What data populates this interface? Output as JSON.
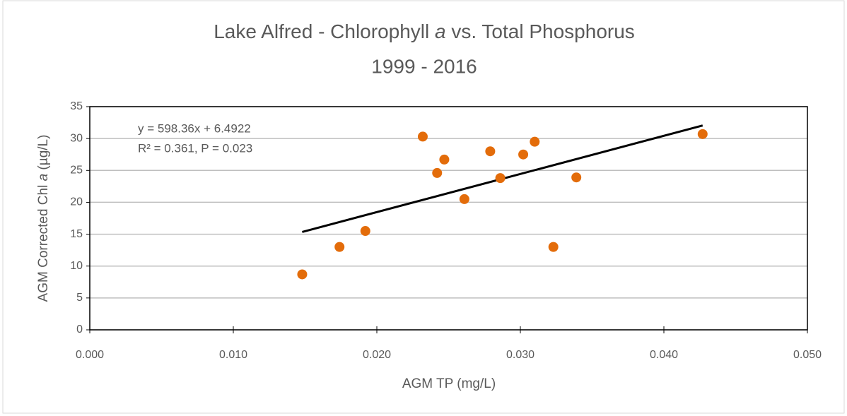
{
  "chart_data": {
    "type": "scatter",
    "title": [
      "Lake Alfred - Chlorophyll ",
      "a",
      " vs. Total Phosphorus"
    ],
    "subtitle": "1999 - 2016",
    "x_label": "AGM TP (mg/L)",
    "y_label": [
      "AGM Corrected Chl ",
      "a",
      " (µg/L)"
    ],
    "annotations": [
      "y = 598.36x + 6.4922",
      "R² = 0.361, P = 0.023"
    ],
    "series": [
      {
        "name": "AGM Corrected Chl a",
        "color": "#e36c0a",
        "x": [
          0.0148,
          0.0174,
          0.0192,
          0.0232,
          0.0242,
          0.0247,
          0.0261,
          0.0279,
          0.0286,
          0.0302,
          0.031,
          0.0323,
          0.0339,
          0.0427
        ],
        "values": [
          8.7,
          13.0,
          15.5,
          30.3,
          24.6,
          26.7,
          20.5,
          28.0,
          23.8,
          27.5,
          29.5,
          13.0,
          23.9,
          30.7
        ]
      }
    ],
    "trendline": {
      "color": "#000000",
      "x": [
        0.0148,
        0.0427
      ],
      "values": [
        15.35,
        32.04
      ]
    },
    "xlim": [
      0,
      0.05
    ],
    "xticks": [
      {
        "value": 0,
        "label": "0.000"
      },
      {
        "value": 0.01,
        "label": "0.010"
      },
      {
        "value": 0.02,
        "label": "0.020"
      },
      {
        "value": 0.03,
        "label": "0.030"
      },
      {
        "value": 0.04,
        "label": "0.040"
      },
      {
        "value": 0.05,
        "label": "0.050"
      }
    ],
    "ylim": [
      0,
      35
    ],
    "yticks": [
      0,
      5,
      10,
      15,
      20,
      25,
      30,
      35
    ],
    "grid": true
  }
}
